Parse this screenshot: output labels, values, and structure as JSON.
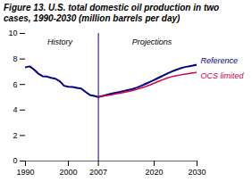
{
  "chart_data": {
    "type": "line",
    "title": "Figure 13. U.S. total domestic oil production in two cases, 1990-2030 (million barrels per day)",
    "x": [
      1990,
      1991,
      1992,
      1993,
      1994,
      1995,
      1996,
      1997,
      1998,
      1999,
      2000,
      2001,
      2002,
      2003,
      2004,
      2005,
      2006,
      2007,
      2008,
      2009,
      2010,
      2011,
      2012,
      2013,
      2014,
      2015,
      2016,
      2017,
      2018,
      2019,
      2020,
      2021,
      2022,
      2023,
      2024,
      2025,
      2026,
      2027,
      2028,
      2029,
      2030
    ],
    "series": [
      {
        "name": "Reference",
        "color": "#000080",
        "values": [
          7.35,
          7.42,
          7.17,
          6.85,
          6.65,
          6.62,
          6.52,
          6.45,
          6.25,
          5.9,
          5.82,
          5.8,
          5.74,
          5.68,
          5.42,
          5.18,
          5.1,
          5.02,
          5.1,
          5.2,
          5.28,
          5.35,
          5.42,
          5.5,
          5.58,
          5.65,
          5.76,
          5.9,
          6.05,
          6.2,
          6.35,
          6.52,
          6.68,
          6.85,
          7.0,
          7.13,
          7.25,
          7.35,
          7.42,
          7.48,
          7.55
        ]
      },
      {
        "name": "OCS limited",
        "color": "#cc0055",
        "values": [
          null,
          null,
          null,
          null,
          null,
          null,
          null,
          null,
          null,
          null,
          null,
          null,
          null,
          null,
          null,
          null,
          null,
          5.02,
          5.08,
          5.14,
          5.2,
          5.26,
          5.32,
          5.38,
          5.45,
          5.52,
          5.62,
          5.73,
          5.84,
          5.96,
          6.1,
          6.24,
          6.37,
          6.5,
          6.6,
          6.68,
          6.74,
          6.8,
          6.85,
          6.9,
          6.95
        ]
      }
    ],
    "xlim": [
      1990,
      2030
    ],
    "xticks": [
      1990,
      2000,
      2007,
      2020,
      2030
    ],
    "ylim": [
      0,
      10
    ],
    "yticks": [
      0,
      2,
      4,
      6,
      8,
      10
    ],
    "grid": false,
    "annotations": [
      {
        "text": "History",
        "x": 1998,
        "y": 9.6
      },
      {
        "text": "Projections",
        "x": 2019.5,
        "y": 9.6
      }
    ],
    "vlines": [
      {
        "x": 2007,
        "color": "#000080"
      }
    ]
  }
}
